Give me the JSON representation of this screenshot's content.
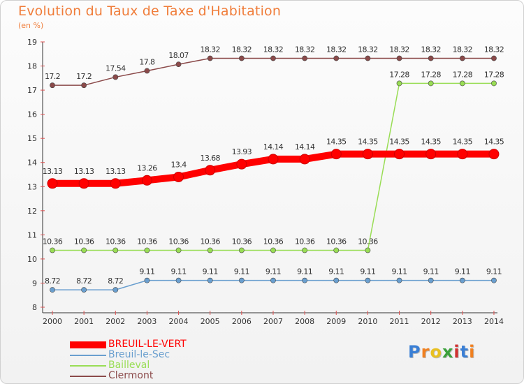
{
  "title": "Evolution du Taux de Taxe d'Habitation",
  "subtitle": "(en %)",
  "logo": {
    "text": "Proxiti"
  },
  "chart_data": {
    "type": "line",
    "title": "Evolution du Taux de Taxe d'Habitation",
    "ylabel": "(en %)",
    "xlabel": "",
    "x": [
      "2000",
      "2001",
      "2002",
      "2003",
      "2004",
      "2005",
      "2006",
      "2007",
      "2008",
      "2009",
      "2010",
      "2011",
      "2012",
      "2013",
      "2014"
    ],
    "ylim": [
      8,
      19
    ],
    "yticks": [
      "8",
      "9",
      "10",
      "11",
      "12",
      "13",
      "14",
      "15",
      "16",
      "17",
      "18",
      "19"
    ],
    "grid": false,
    "legend_position": "bottom-left",
    "series": [
      {
        "name": "BREUIL-LE-VERT",
        "color": "#ff0000",
        "values": [
          13.13,
          13.13,
          13.13,
          13.26,
          13.4,
          13.68,
          13.93,
          14.14,
          14.14,
          14.35,
          14.35,
          14.35,
          14.35,
          14.35,
          14.35
        ],
        "labels": [
          "13.13",
          "13.13",
          "13.13",
          "13.26",
          "13.4",
          "13.68",
          "13.93",
          "14.14",
          "14.14",
          "14.35",
          "14.35",
          "14.35",
          "14.35",
          "14.35",
          "14.35"
        ]
      },
      {
        "name": "Breuil-le-Sec",
        "color": "#6a9fcf",
        "values": [
          8.72,
          8.72,
          8.72,
          9.11,
          9.11,
          9.11,
          9.11,
          9.11,
          9.11,
          9.11,
          9.11,
          9.11,
          9.11,
          9.11,
          9.11
        ],
        "labels": [
          "8.72",
          "8.72",
          "8.72",
          "9.11",
          "9.11",
          "9.11",
          "9.11",
          "9.11",
          "9.11",
          "9.11",
          "9.11",
          "9.11",
          "9.11",
          "9.11",
          "9.11"
        ]
      },
      {
        "name": "Bailleval",
        "color": "#99dd55",
        "values": [
          10.36,
          10.36,
          10.36,
          10.36,
          10.36,
          10.36,
          10.36,
          10.36,
          10.36,
          10.36,
          10.36,
          17.28,
          17.28,
          17.28,
          17.28
        ],
        "labels": [
          "10.36",
          "10.36",
          "10.36",
          "10.36",
          "10.36",
          "10.36",
          "10.36",
          "10.36",
          "10.36",
          "10.36",
          "10.36",
          "17.28",
          "17.28",
          "17.28",
          "17.28"
        ]
      },
      {
        "name": "Clermont",
        "color": "#8b4a4a",
        "values": [
          17.2,
          17.2,
          17.54,
          17.8,
          18.07,
          18.32,
          18.32,
          18.32,
          18.32,
          18.32,
          18.32,
          18.32,
          18.32,
          18.32,
          18.32
        ],
        "labels": [
          "17.2",
          "17.2",
          "17.54",
          "17.8",
          "18.07",
          "18.32",
          "18.32",
          "18.32",
          "18.32",
          "18.32",
          "18.32",
          "18.32",
          "18.32",
          "18.32",
          "18.32"
        ]
      }
    ]
  }
}
